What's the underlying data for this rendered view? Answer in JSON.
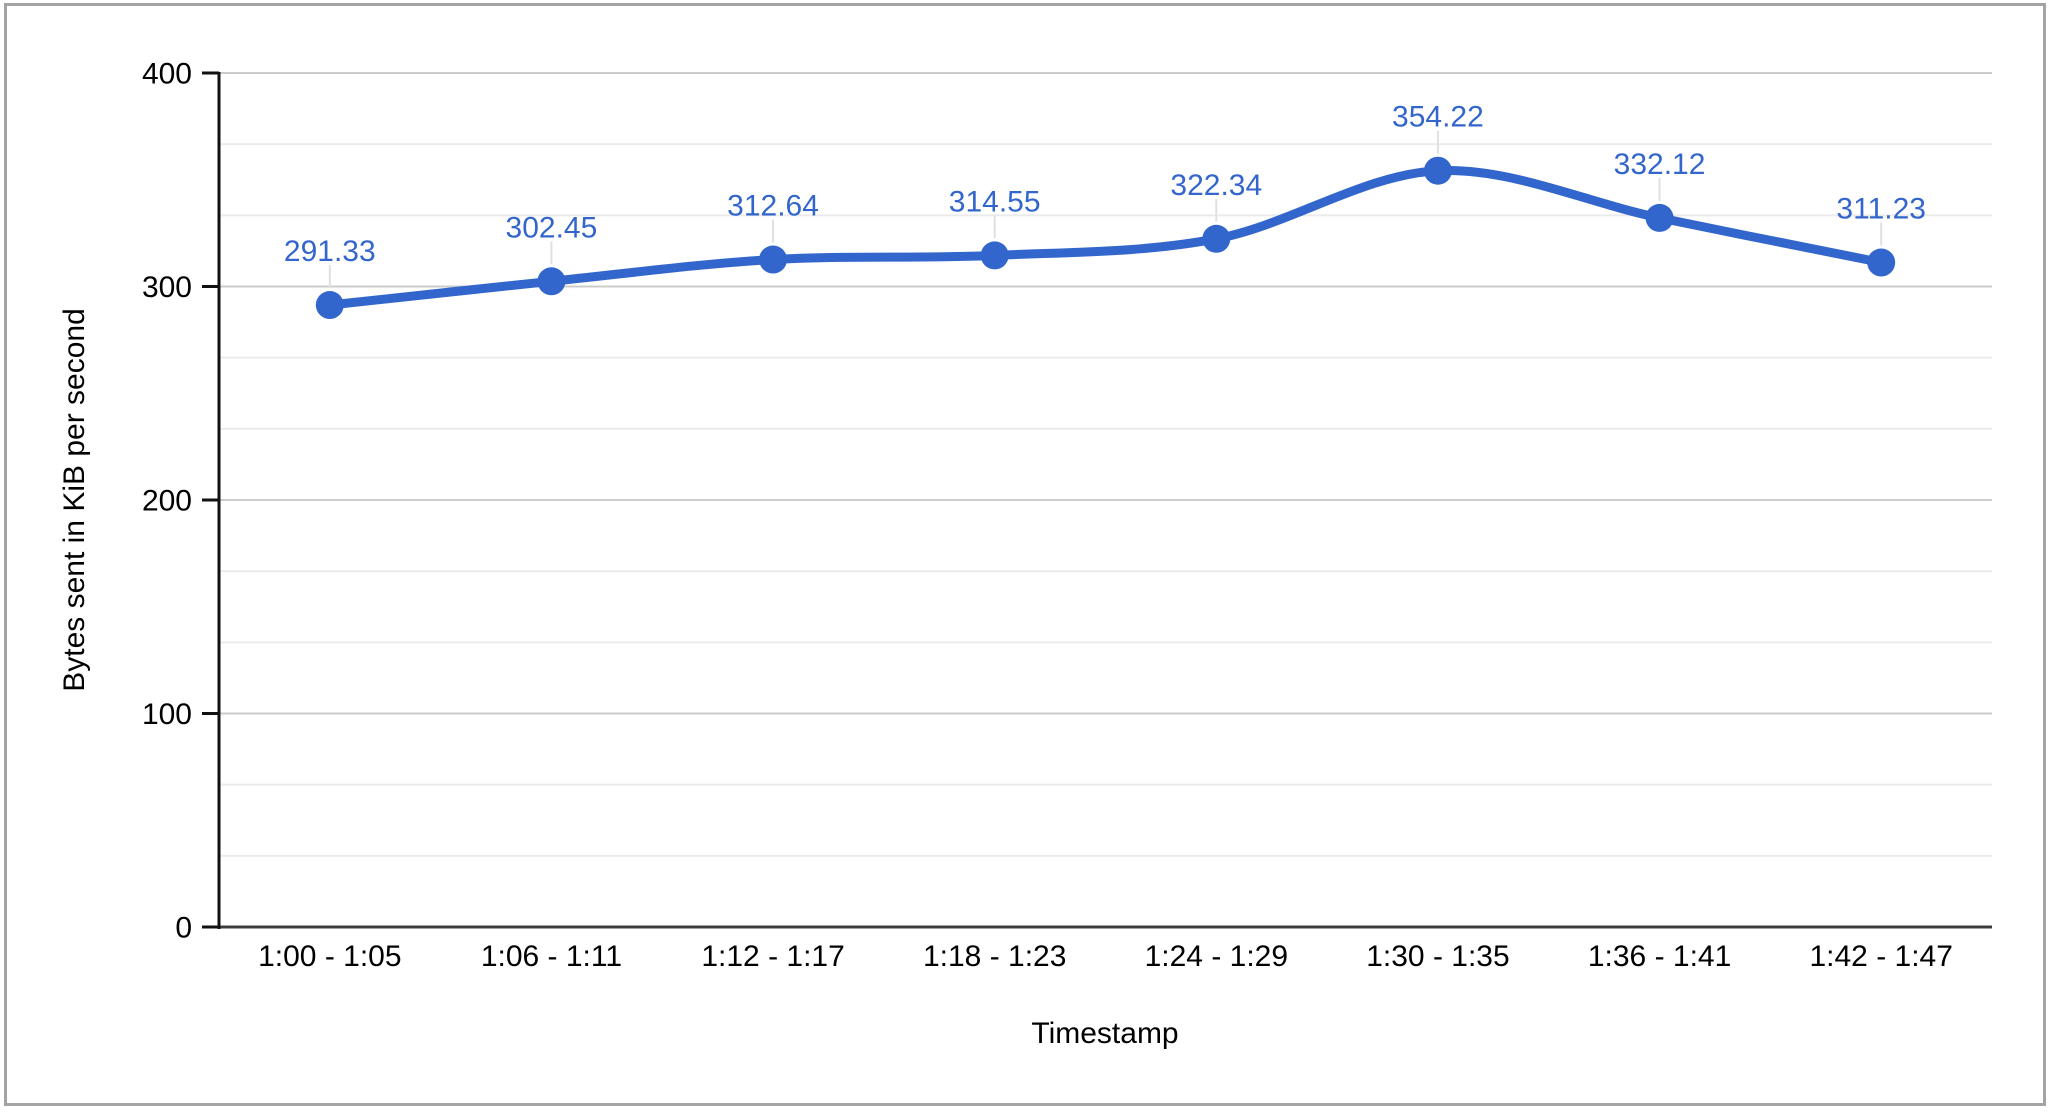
{
  "window": {
    "background": "#ffffff",
    "border_color": "#a3a3a3"
  },
  "chart_data": {
    "type": "line",
    "smooth": true,
    "legend": "none",
    "grid": "horizontal",
    "title": "",
    "xlabel": "Timestamp",
    "ylabel": "Bytes sent in KiB per second",
    "categories": [
      "1:00 - 1:05",
      "1:06 - 1:11",
      "1:12 - 1:17",
      "1:18 - 1:23",
      "1:24 - 1:29",
      "1:30 - 1:35",
      "1:36 - 1:41",
      "1:42 - 1:47"
    ],
    "values": [
      291.33,
      302.45,
      312.64,
      314.55,
      322.34,
      354.22,
      332.12,
      311.23
    ],
    "value_labels": [
      "291.33",
      "302.45",
      "312.64",
      "314.55",
      "322.34",
      "354.22",
      "332.12",
      "311.23"
    ],
    "ylim": [
      0,
      400
    ],
    "ytick_values": [
      0,
      100,
      200,
      300,
      400
    ],
    "ytick_labels": [
      "0",
      "100",
      "200",
      "300",
      "400"
    ],
    "minor_grid_divisions": 3,
    "colors": {
      "series": "#3366cc",
      "data_label_text": "#3366cc",
      "major_grid": "#cccccc",
      "minor_grid": "#ebebeb",
      "baseline": "#3c3c3c",
      "axis": "#111111",
      "tick": "#111111",
      "leader": "#e0e0e0",
      "text": "#000000"
    }
  }
}
